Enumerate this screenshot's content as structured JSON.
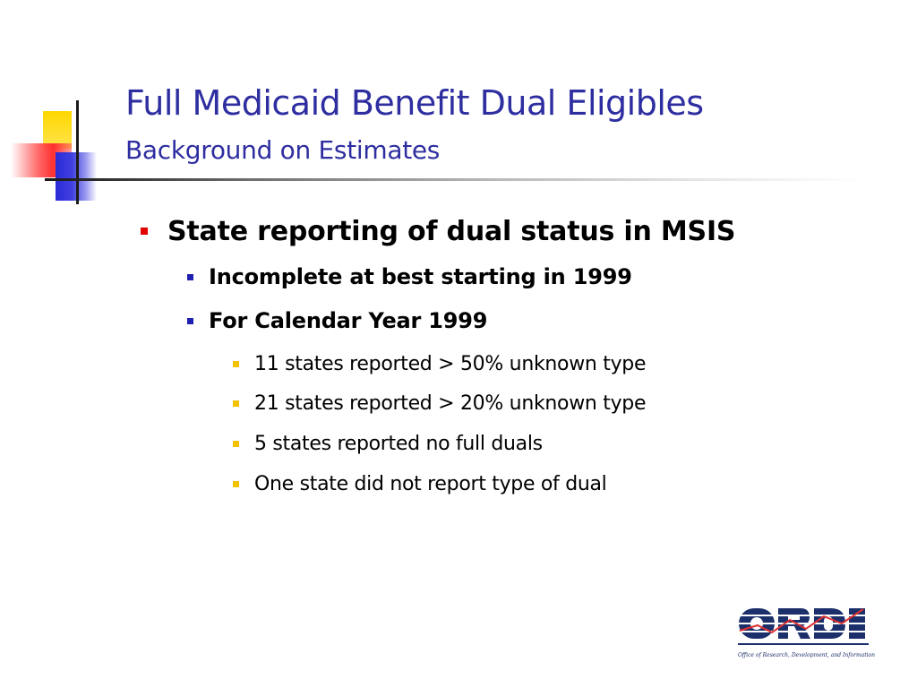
{
  "slide": {
    "title": "Full Medicaid Benefit Dual Eligibles",
    "subtitle": "Background on Estimates"
  },
  "bullets": {
    "level1": {
      "text": "State reporting of dual status in MSIS",
      "marker_color": "#e00000"
    },
    "level2": [
      {
        "text": "Incomplete at best starting in 1999"
      },
      {
        "text": "For Calendar Year 1999"
      }
    ],
    "level3": [
      {
        "text": "11 states reported > 50% unknown type"
      },
      {
        "text": "21 states reported > 20% unknown type"
      },
      {
        "text": "5 states reported no full duals"
      },
      {
        "text": "One state did not report type of dual"
      }
    ],
    "level2_marker_color": "#1f1fb0",
    "level3_marker_color": "#f2c200"
  },
  "logo": {
    "wordmark": "ORDI",
    "caption": "Office of Research, Development, and Information",
    "color": "#1b2f6b",
    "accent": "#e03030"
  },
  "theme": {
    "title_color": "#2e2ea1",
    "decor_colors": [
      "#ffd800",
      "#ff3030",
      "#2b2bd6"
    ]
  }
}
